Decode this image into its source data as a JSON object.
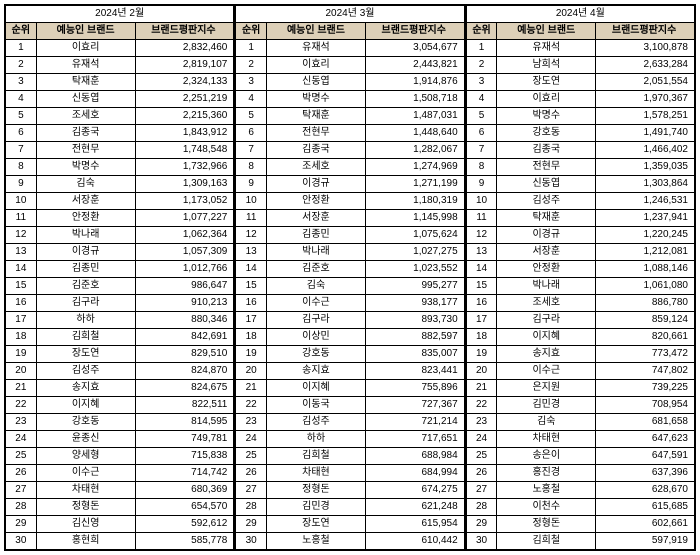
{
  "columns": {
    "rank": "순위",
    "name": "예능인 브랜드",
    "score": "브랜드평판지수"
  },
  "panels": [
    {
      "month": "2024년 2월",
      "rows": [
        {
          "r": 1,
          "n": "이효리",
          "s": "2,832,460"
        },
        {
          "r": 2,
          "n": "유재석",
          "s": "2,819,107"
        },
        {
          "r": 3,
          "n": "탁재훈",
          "s": "2,324,133"
        },
        {
          "r": 4,
          "n": "신동엽",
          "s": "2,251,219"
        },
        {
          "r": 5,
          "n": "조세호",
          "s": "2,215,360"
        },
        {
          "r": 6,
          "n": "김종국",
          "s": "1,843,912"
        },
        {
          "r": 7,
          "n": "전현무",
          "s": "1,748,548"
        },
        {
          "r": 8,
          "n": "박명수",
          "s": "1,732,966"
        },
        {
          "r": 9,
          "n": "김숙",
          "s": "1,309,163"
        },
        {
          "r": 10,
          "n": "서장훈",
          "s": "1,173,052"
        },
        {
          "r": 11,
          "n": "안정환",
          "s": "1,077,227"
        },
        {
          "r": 12,
          "n": "박나래",
          "s": "1,062,364"
        },
        {
          "r": 13,
          "n": "이경규",
          "s": "1,057,309"
        },
        {
          "r": 14,
          "n": "김종민",
          "s": "1,012,766"
        },
        {
          "r": 15,
          "n": "김준호",
          "s": "986,647"
        },
        {
          "r": 16,
          "n": "김구라",
          "s": "910,213"
        },
        {
          "r": 17,
          "n": "하하",
          "s": "880,346"
        },
        {
          "r": 18,
          "n": "김희철",
          "s": "842,691"
        },
        {
          "r": 19,
          "n": "장도연",
          "s": "829,510"
        },
        {
          "r": 20,
          "n": "김성주",
          "s": "824,870"
        },
        {
          "r": 21,
          "n": "송지효",
          "s": "824,675"
        },
        {
          "r": 22,
          "n": "이지혜",
          "s": "822,511"
        },
        {
          "r": 23,
          "n": "강호동",
          "s": "814,595"
        },
        {
          "r": 24,
          "n": "윤종신",
          "s": "749,781"
        },
        {
          "r": 25,
          "n": "양세형",
          "s": "715,838"
        },
        {
          "r": 26,
          "n": "이수근",
          "s": "714,742"
        },
        {
          "r": 27,
          "n": "차태현",
          "s": "680,369"
        },
        {
          "r": 28,
          "n": "정형돈",
          "s": "654,570"
        },
        {
          "r": 29,
          "n": "김신영",
          "s": "592,612"
        },
        {
          "r": 30,
          "n": "홍현희",
          "s": "585,778"
        }
      ]
    },
    {
      "month": "2024년 3월",
      "rows": [
        {
          "r": 1,
          "n": "유재석",
          "s": "3,054,677"
        },
        {
          "r": 2,
          "n": "이효리",
          "s": "2,443,821"
        },
        {
          "r": 3,
          "n": "신동엽",
          "s": "1,914,876"
        },
        {
          "r": 4,
          "n": "박명수",
          "s": "1,508,718"
        },
        {
          "r": 5,
          "n": "탁재훈",
          "s": "1,487,031"
        },
        {
          "r": 6,
          "n": "전현무",
          "s": "1,448,640"
        },
        {
          "r": 7,
          "n": "김종국",
          "s": "1,282,067"
        },
        {
          "r": 8,
          "n": "조세호",
          "s": "1,274,969"
        },
        {
          "r": 9,
          "n": "이경규",
          "s": "1,271,199"
        },
        {
          "r": 10,
          "n": "안정환",
          "s": "1,180,319"
        },
        {
          "r": 11,
          "n": "서장훈",
          "s": "1,145,998"
        },
        {
          "r": 12,
          "n": "김종민",
          "s": "1,075,624"
        },
        {
          "r": 13,
          "n": "박나래",
          "s": "1,027,275"
        },
        {
          "r": 14,
          "n": "김준호",
          "s": "1,023,552"
        },
        {
          "r": 15,
          "n": "김숙",
          "s": "995,277"
        },
        {
          "r": 16,
          "n": "이수근",
          "s": "938,177"
        },
        {
          "r": 17,
          "n": "김구라",
          "s": "893,730"
        },
        {
          "r": 18,
          "n": "이상민",
          "s": "882,597"
        },
        {
          "r": 19,
          "n": "강호동",
          "s": "835,007"
        },
        {
          "r": 20,
          "n": "송지효",
          "s": "823,441"
        },
        {
          "r": 21,
          "n": "이지혜",
          "s": "755,896"
        },
        {
          "r": 22,
          "n": "이동국",
          "s": "727,367"
        },
        {
          "r": 23,
          "n": "김성주",
          "s": "721,214"
        },
        {
          "r": 24,
          "n": "하하",
          "s": "717,651"
        },
        {
          "r": 25,
          "n": "김희철",
          "s": "688,984"
        },
        {
          "r": 26,
          "n": "차태현",
          "s": "684,994"
        },
        {
          "r": 27,
          "n": "정형돈",
          "s": "674,275"
        },
        {
          "r": 28,
          "n": "김민경",
          "s": "621,248"
        },
        {
          "r": 29,
          "n": "장도연",
          "s": "615,954"
        },
        {
          "r": 30,
          "n": "노홍철",
          "s": "610,442"
        }
      ]
    },
    {
      "month": "2024년 4월",
      "rows": [
        {
          "r": 1,
          "n": "유재석",
          "s": "3,100,878"
        },
        {
          "r": 2,
          "n": "남희석",
          "s": "2,633,284"
        },
        {
          "r": 3,
          "n": "장도연",
          "s": "2,051,554"
        },
        {
          "r": 4,
          "n": "이효리",
          "s": "1,970,367"
        },
        {
          "r": 5,
          "n": "박명수",
          "s": "1,578,251"
        },
        {
          "r": 6,
          "n": "강호동",
          "s": "1,491,740"
        },
        {
          "r": 7,
          "n": "김종국",
          "s": "1,466,402"
        },
        {
          "r": 8,
          "n": "전현무",
          "s": "1,359,035"
        },
        {
          "r": 9,
          "n": "신동엽",
          "s": "1,303,864"
        },
        {
          "r": 10,
          "n": "김성주",
          "s": "1,246,531"
        },
        {
          "r": 11,
          "n": "탁재훈",
          "s": "1,237,941"
        },
        {
          "r": 12,
          "n": "이경규",
          "s": "1,220,245"
        },
        {
          "r": 13,
          "n": "서장훈",
          "s": "1,212,081"
        },
        {
          "r": 14,
          "n": "안정환",
          "s": "1,088,146"
        },
        {
          "r": 15,
          "n": "박나래",
          "s": "1,061,080"
        },
        {
          "r": 16,
          "n": "조세호",
          "s": "886,780"
        },
        {
          "r": 17,
          "n": "김구라",
          "s": "859,124"
        },
        {
          "r": 18,
          "n": "이지혜",
          "s": "820,661"
        },
        {
          "r": 19,
          "n": "송지효",
          "s": "773,472"
        },
        {
          "r": 20,
          "n": "이수근",
          "s": "747,802"
        },
        {
          "r": 21,
          "n": "은지원",
          "s": "739,225"
        },
        {
          "r": 22,
          "n": "김민경",
          "s": "708,954"
        },
        {
          "r": 23,
          "n": "김숙",
          "s": "681,658"
        },
        {
          "r": 24,
          "n": "차태현",
          "s": "647,623"
        },
        {
          "r": 25,
          "n": "송은이",
          "s": "647,591"
        },
        {
          "r": 26,
          "n": "홍진경",
          "s": "637,396"
        },
        {
          "r": 27,
          "n": "노홍철",
          "s": "628,670"
        },
        {
          "r": 28,
          "n": "이천수",
          "s": "615,685"
        },
        {
          "r": 29,
          "n": "정형돈",
          "s": "602,661"
        },
        {
          "r": 30,
          "n": "김희철",
          "s": "597,919"
        }
      ]
    }
  ]
}
